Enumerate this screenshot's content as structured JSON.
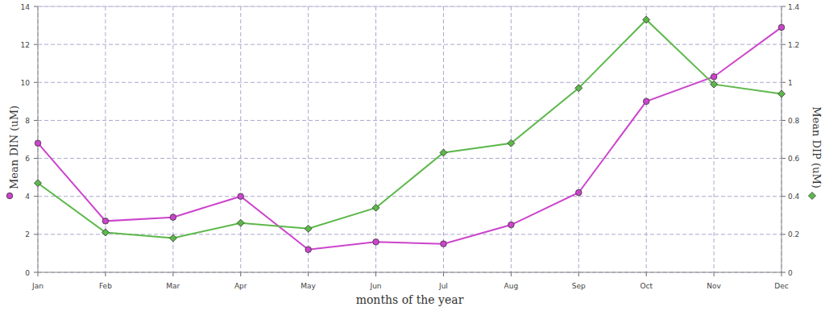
{
  "chart_data": {
    "type": "line",
    "x_label": "months of the year",
    "y_label": "Mean DIN (uM)",
    "y2_label": "Mean DIP (uM)",
    "categories": [
      "Jan",
      "Feb",
      "Mar",
      "Apr",
      "May",
      "Jun",
      "Jul",
      "Aug",
      "Sep",
      "Oct",
      "Nov",
      "Dec"
    ],
    "series": [
      {
        "name": "Mean DIN (uM)",
        "color": "#cc44cc",
        "marker": "circle",
        "axis": "y",
        "values": [
          6.8,
          2.7,
          2.9,
          4.0,
          1.2,
          1.6,
          1.5,
          2.5,
          4.2,
          9.0,
          10.3,
          12.9
        ]
      },
      {
        "name": "Mean DIP (uM)",
        "color": "#5cb84a",
        "marker": "diamond",
        "axis": "y2",
        "values": [
          0.47,
          0.21,
          0.18,
          0.26,
          0.23,
          0.34,
          0.63,
          0.68,
          0.97,
          1.33,
          0.99,
          0.94
        ]
      }
    ],
    "ylim": [
      0,
      14
    ],
    "yticks": [
      0,
      2,
      4,
      6,
      8,
      10,
      12,
      14
    ],
    "y2lim": [
      0,
      1.4
    ],
    "y2ticks": [
      0,
      0.2,
      0.4,
      0.6,
      0.8,
      1,
      1.2,
      1.4
    ],
    "grid": true
  }
}
